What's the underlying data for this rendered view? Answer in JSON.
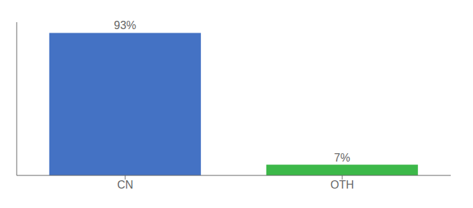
{
  "chart_data": {
    "type": "bar",
    "categories": [
      "CN",
      "OTH"
    ],
    "values": [
      93,
      7
    ],
    "colors": [
      "#4472C4",
      "#3CB849"
    ],
    "value_labels": [
      "93%",
      "7%"
    ],
    "data_labels": true,
    "ylim": [
      0,
      100
    ],
    "tick_labels": "x",
    "grid": false
  }
}
